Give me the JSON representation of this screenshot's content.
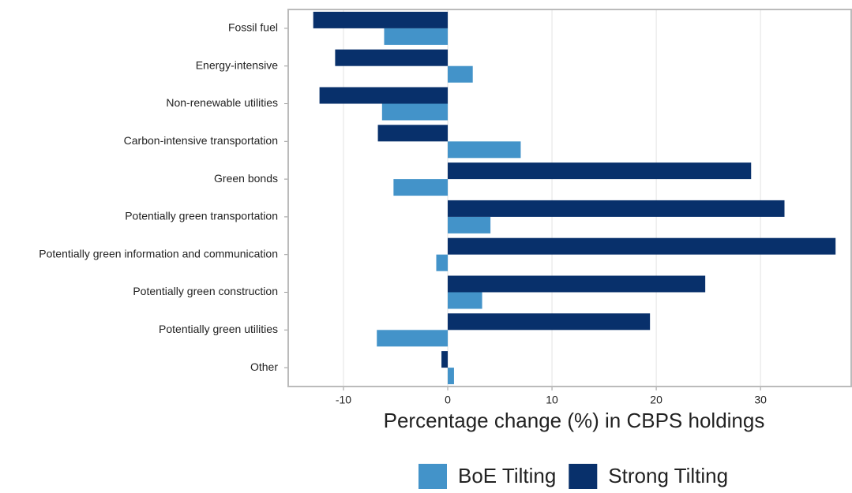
{
  "chart_data": {
    "type": "hbar",
    "xlabel": "Percentage change (%) in CBPS holdings",
    "categories": [
      "Fossil fuel",
      "Energy-intensive",
      "Non-renewable utilities",
      "Carbon-intensive transportation",
      "Green bonds",
      "Potentially green transportation",
      "Potentially green information and communication",
      "Potentially green construction",
      "Potentially green utilities",
      "Other"
    ],
    "series": [
      {
        "name": "BoE Tilting",
        "color": "#4393c9",
        "values": [
          -6.1,
          2.4,
          -6.3,
          7.0,
          -5.2,
          4.1,
          -1.1,
          3.3,
          -6.8,
          0.6
        ]
      },
      {
        "name": "Strong Tilting",
        "color": "#08306b",
        "values": [
          -12.9,
          -10.8,
          -12.3,
          -6.7,
          29.1,
          32.3,
          37.2,
          24.7,
          19.4,
          -0.6
        ]
      }
    ],
    "xlim": [
      -15.3,
      38.7
    ],
    "xticks": [
      -10,
      0,
      10,
      20,
      30
    ],
    "grid": true
  }
}
